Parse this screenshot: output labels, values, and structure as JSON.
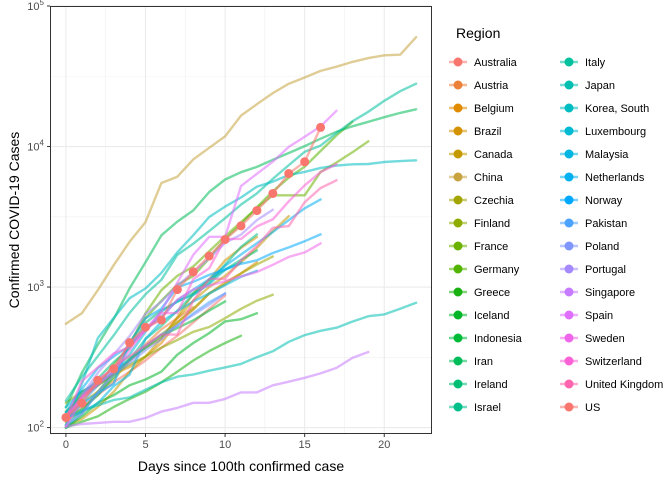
{
  "chart_data": {
    "type": "line",
    "xlabel": "Days since 100th confirmed case",
    "ylabel": "Confirmed COVID-19 Cases",
    "xlim": [
      -1,
      23
    ],
    "ylim": [
      90,
      100000
    ],
    "y_scale": "log10",
    "x_ticks": [
      0,
      5,
      10,
      15,
      20
    ],
    "x_tick_labels": [
      "0",
      "5",
      "10",
      "15",
      "20"
    ],
    "y_ticks": [
      100,
      1000,
      10000,
      100000
    ],
    "y_tick_labels": [
      "10^2",
      "10^3",
      "10^4",
      "10^5"
    ],
    "grid": true,
    "legend": {
      "title": "Region",
      "position": "right",
      "columns": 2
    },
    "highlight_series": "US",
    "series": [
      {
        "name": "Australia",
        "color": "#F8766D",
        "x": [
          0,
          1,
          2,
          3,
          4,
          5,
          6,
          7,
          8,
          9,
          10
        ],
        "y": [
          112,
          140,
          170,
          210,
          250,
          300,
          370,
          450,
          560,
          700,
          870
        ]
      },
      {
        "name": "Austria",
        "color": "#EC8239",
        "x": [
          0,
          1,
          2,
          3,
          4,
          5,
          6,
          7,
          8
        ],
        "y": [
          112,
          130,
          180,
          240,
          300,
          390,
          500,
          600,
          720
        ]
      },
      {
        "name": "Belgium",
        "color": "#E08B00",
        "x": [
          0,
          1,
          2,
          3,
          4,
          5,
          6,
          7,
          8,
          9,
          10,
          11,
          12
        ],
        "y": [
          109,
          170,
          200,
          240,
          270,
          320,
          400,
          560,
          690,
          900,
          1080,
          1250,
          1500
        ]
      },
      {
        "name": "Brazil",
        "color": "#D39200",
        "x": [
          0,
          1,
          2,
          3,
          4,
          5,
          6,
          7,
          8,
          9,
          10,
          11,
          12
        ],
        "y": [
          121,
          170,
          200,
          240,
          300,
          370,
          430,
          610,
          900,
          1130,
          1550,
          1900,
          2270
        ]
      },
      {
        "name": "Canada",
        "color": "#C49A00",
        "x": [
          0,
          1,
          2,
          3,
          4,
          5,
          6,
          7,
          8,
          9,
          10,
          11,
          12,
          13,
          14
        ],
        "y": [
          103,
          115,
          140,
          180,
          250,
          320,
          430,
          600,
          800,
          1000,
          1200,
          1500,
          1900,
          2500,
          3200
        ]
      },
      {
        "name": "China",
        "color": "#C7A440",
        "x": [
          0,
          1,
          2,
          3,
          4,
          5,
          6,
          7,
          8,
          9,
          10,
          11,
          12,
          13,
          14,
          15,
          16,
          17,
          18,
          19,
          20,
          21,
          22
        ],
        "y": [
          548,
          650,
          950,
          1430,
          2100,
          2900,
          5500,
          6100,
          8100,
          9800,
          11800,
          16600,
          20000,
          24000,
          28000,
          31000,
          34500,
          37000,
          40000,
          42600,
          44600,
          45000,
          60000
        ]
      },
      {
        "name": "Czechia",
        "color": "#A3A500",
        "x": [
          0,
          1,
          2,
          3,
          4,
          5,
          6,
          7,
          8,
          9,
          10,
          11,
          12,
          13
        ],
        "y": [
          116,
          150,
          180,
          220,
          300,
          380,
          460,
          560,
          700,
          900,
          1050,
          1250,
          1450,
          1650
        ]
      },
      {
        "name": "Finland",
        "color": "#8EAB00",
        "x": [
          0,
          1,
          2,
          3,
          4,
          5,
          6,
          7,
          8,
          9,
          10,
          11,
          12,
          13
        ],
        "y": [
          150,
          180,
          210,
          240,
          280,
          320,
          370,
          420,
          480,
          520,
          600,
          700,
          800,
          880
        ]
      },
      {
        "name": "France",
        "color": "#6BB100",
        "x": [
          0,
          1,
          2,
          3,
          4,
          5,
          6,
          7,
          8,
          9,
          10,
          11,
          12,
          13,
          14,
          15,
          16,
          17,
          18,
          19
        ],
        "y": [
          120,
          180,
          200,
          280,
          380,
          650,
          950,
          1200,
          1400,
          1800,
          2300,
          2900,
          3650,
          4500,
          4500,
          4500,
          6600,
          7700,
          9100,
          10900
        ]
      },
      {
        "name": "Germany",
        "color": "#53B400",
        "x": [
          0,
          1,
          2,
          3,
          4,
          5,
          6,
          7,
          8,
          9,
          10,
          11,
          12,
          13,
          14,
          15,
          16,
          17,
          18
        ],
        "y": [
          130,
          160,
          200,
          240,
          400,
          600,
          800,
          1040,
          1200,
          1600,
          2200,
          2800,
          3700,
          4800,
          6000,
          7200,
          9300,
          12000,
          15000
        ]
      },
      {
        "name": "Greece",
        "color": "#1AB213",
        "x": [
          0,
          1,
          2,
          3,
          4,
          5,
          6,
          7,
          8,
          9,
          10,
          11
        ],
        "y": [
          100,
          110,
          120,
          140,
          160,
          180,
          210,
          250,
          300,
          350,
          400,
          450
        ]
      },
      {
        "name": "Iceland",
        "color": "#00B526",
        "x": [
          0,
          1,
          2,
          3,
          4,
          5,
          6,
          7,
          8,
          9,
          10,
          11,
          12
        ],
        "y": [
          100,
          120,
          150,
          170,
          200,
          220,
          250,
          330,
          400,
          470,
          570,
          590,
          650
        ]
      },
      {
        "name": "Indonesia",
        "color": "#00BA38",
        "x": [
          0,
          1,
          2,
          3,
          4,
          5,
          6,
          7,
          8,
          9,
          10
        ],
        "y": [
          117,
          135,
          170,
          230,
          310,
          370,
          450,
          510,
          580,
          680,
          790
        ]
      },
      {
        "name": "Iran",
        "color": "#00BC59",
        "x": [
          0,
          1,
          2,
          3,
          4,
          5,
          6,
          7,
          8,
          9,
          10,
          11,
          12,
          13,
          14,
          15,
          16,
          17,
          18,
          19,
          20,
          21,
          22
        ],
        "y": [
          139,
          245,
          388,
          593,
          978,
          1501,
          2336,
          2922,
          3513,
          4747,
          5823,
          6566,
          7161,
          8042,
          9000,
          10075,
          11364,
          12729,
          13938,
          14991,
          16169,
          17361,
          18407
        ]
      },
      {
        "name": "Ireland",
        "color": "#00BE73",
        "x": [
          0,
          1,
          2,
          3,
          4,
          5,
          6,
          7,
          8,
          9,
          10,
          11,
          12
        ],
        "y": [
          129,
          169,
          223,
          292,
          366,
          557,
          683,
          785,
          906,
          1125,
          1329,
          1564,
          1819
        ]
      },
      {
        "name": "Israel",
        "color": "#00BF8A",
        "x": [
          0,
          1,
          2,
          3,
          4,
          5,
          6,
          7,
          8,
          9,
          10,
          11,
          12
        ],
        "y": [
          100,
          126,
          178,
          250,
          304,
          427,
          529,
          678,
          883,
          1071,
          1442,
          1930,
          2369
        ]
      },
      {
        "name": "Italy",
        "color": "#00C09E",
        "x": [
          0,
          1,
          2,
          3,
          4,
          5,
          6,
          7,
          8,
          9,
          10,
          11,
          12,
          13,
          14,
          15,
          16,
          17,
          18,
          19,
          20,
          21,
          22
        ],
        "y": [
          155,
          229,
          322,
          453,
          655,
          888,
          1128,
          1694,
          2036,
          2502,
          3089,
          3858,
          4636,
          5883,
          7375,
          9172,
          10149,
          12462,
          15113,
          17660,
          21157,
          24747,
          27980
        ]
      },
      {
        "name": "Japan",
        "color": "#00BFB0",
        "x": [
          0,
          1,
          2,
          3,
          4,
          5,
          6,
          7,
          8,
          9,
          10,
          11,
          12,
          13,
          14,
          15,
          16,
          17,
          18,
          19,
          20,
          21,
          22
        ],
        "y": [
          105,
          132,
          144,
          157,
          164,
          186,
          210,
          230,
          239,
          254,
          268,
          284,
          317,
          349,
          408,
          455,
          488,
          514,
          568,
          620,
          639,
          701,
          773
        ]
      },
      {
        "name": "Korea, South",
        "color": "#00BDC2",
        "x": [
          0,
          1,
          2,
          3,
          4,
          5,
          6,
          7,
          8,
          9,
          10,
          11,
          12,
          13,
          14,
          15,
          16,
          17,
          18,
          19,
          20,
          21,
          22
        ],
        "y": [
          104,
          204,
          433,
          602,
          833,
          977,
          1261,
          1766,
          2337,
          3150,
          3736,
          4335,
          5186,
          5621,
          6284,
          6593,
          7041,
          7314,
          7478,
          7513,
          7755,
          7869,
          7979
        ]
      },
      {
        "name": "Luxembourg",
        "color": "#00BAD3",
        "x": [
          0,
          1,
          2,
          3,
          4,
          5,
          6,
          7,
          8,
          9,
          10,
          11
        ],
        "y": [
          140,
          180,
          210,
          250,
          330,
          480,
          670,
          790,
          880,
          1050,
          1330,
          1500
        ]
      },
      {
        "name": "Malaysia",
        "color": "#00B5E2",
        "x": [
          0,
          1,
          2,
          3,
          4,
          5,
          6,
          7,
          8,
          9,
          10,
          11,
          12
        ],
        "y": [
          117,
          129,
          149,
          197,
          238,
          428,
          566,
          673,
          790,
          900,
          1030,
          1183,
          1306
        ]
      },
      {
        "name": "Netherlands",
        "color": "#00B0F0",
        "x": [
          0,
          1,
          2,
          3,
          4,
          5,
          6,
          7,
          8,
          9,
          10,
          11,
          12,
          13,
          14,
          15,
          16
        ],
        "y": [
          128,
          188,
          265,
          321,
          382,
          503,
          614,
          804,
          959,
          1135,
          1413,
          1705,
          2051,
          2460,
          2994,
          3631,
          4204
        ]
      },
      {
        "name": "Norway",
        "color": "#00A9FF",
        "x": [
          0,
          1,
          2,
          3,
          4,
          5,
          6,
          7,
          8,
          9,
          10,
          11,
          12,
          13,
          14,
          15,
          16
        ],
        "y": [
          113,
          147,
          176,
          205,
          400,
          598,
          702,
          996,
          1090,
          1221,
          1333,
          1463,
          1550,
          1746,
          1914,
          2118,
          2371
        ]
      },
      {
        "name": "Pakistan",
        "color": "#4BA2FF",
        "x": [
          0,
          1,
          2,
          3,
          4,
          5,
          6,
          7,
          8,
          9,
          10
        ],
        "y": [
          120,
          150,
          200,
          250,
          300,
          380,
          460,
          530,
          650,
          780,
          900
        ]
      },
      {
        "name": "Poland",
        "color": "#7F96FF",
        "x": [
          0,
          1,
          2,
          3,
          4,
          5,
          6,
          7,
          8,
          9,
          10
        ],
        "y": [
          104,
          125,
          177,
          238,
          287,
          355,
          425,
          536,
          634,
          749,
          901
        ]
      },
      {
        "name": "Portugal",
        "color": "#A58AFF",
        "x": [
          0,
          1,
          2,
          3,
          4,
          5,
          6,
          7,
          8,
          9,
          10,
          11,
          12,
          13
        ],
        "y": [
          112,
          169,
          245,
          331,
          448,
          642,
          785,
          1020,
          1280,
          1600,
          2060,
          2362,
          2995,
          3544
        ]
      },
      {
        "name": "Singapore",
        "color": "#C77CFF",
        "x": [
          0,
          1,
          2,
          3,
          4,
          5,
          6,
          7,
          8,
          9,
          10,
          11,
          12,
          13,
          14,
          15,
          16,
          17,
          18,
          19
        ],
        "y": [
          102,
          106,
          108,
          110,
          110,
          117,
          130,
          138,
          150,
          150,
          160,
          178,
          178,
          200,
          212,
          226,
          243,
          266,
          313,
          345
        ]
      },
      {
        "name": "Spain",
        "color": "#E06EFF",
        "x": [
          0,
          1,
          2,
          3,
          4,
          5,
          6,
          7,
          8,
          9,
          10,
          11,
          12,
          13,
          14,
          15,
          16,
          17
        ],
        "y": [
          120,
          165,
          222,
          259,
          400,
          500,
          673,
          1073,
          1695,
          2277,
          2277,
          5232,
          6391,
          7798,
          9942,
          11748,
          13910,
          17963
        ]
      },
      {
        "name": "Sweden",
        "color": "#F066EA",
        "x": [
          0,
          1,
          2,
          3,
          4,
          5,
          6,
          7,
          8,
          9,
          10,
          11,
          12,
          13,
          14,
          15,
          16
        ],
        "y": [
          101,
          161,
          203,
          248,
          355,
          500,
          599,
          814,
          961,
          1022,
          1103,
          1190,
          1279,
          1439,
          1639,
          1763,
          2046
        ]
      },
      {
        "name": "Switzerland",
        "color": "#FB61D7",
        "x": [
          0,
          1,
          2,
          3,
          4,
          5,
          6,
          7,
          8,
          9,
          10,
          11,
          12,
          13,
          14,
          15,
          16,
          17
        ],
        "y": [
          114,
          214,
          268,
          337,
          374,
          491,
          652,
          652,
          1139,
          1359,
          2200,
          2200,
          2700,
          3028,
          4075,
          5294,
          6575,
          7474
        ]
      },
      {
        "name": "United Kingdom",
        "color": "#FF65AE",
        "x": [
          0,
          1,
          2,
          3,
          4,
          5,
          6,
          7,
          8,
          9,
          10,
          11,
          12,
          13,
          14,
          15,
          16,
          17
        ],
        "y": [
          116,
          164,
          207,
          274,
          322,
          384,
          459,
          459,
          802,
          1144,
          1145,
          1551,
          1960,
          2642,
          2716,
          4014,
          5067,
          5745
        ]
      },
      {
        "name": "US",
        "color": "#F8766D",
        "x": [
          0,
          1,
          2,
          3,
          4,
          5,
          6,
          7,
          8,
          9,
          10,
          11,
          12,
          13,
          14,
          15,
          16
        ],
        "y": [
          118,
          149,
          217,
          262,
          402,
          518,
          583,
          959,
          1281,
          1663,
          2179,
          2726,
          3499,
          4632,
          6421,
          7786,
          13680
        ]
      }
    ]
  }
}
